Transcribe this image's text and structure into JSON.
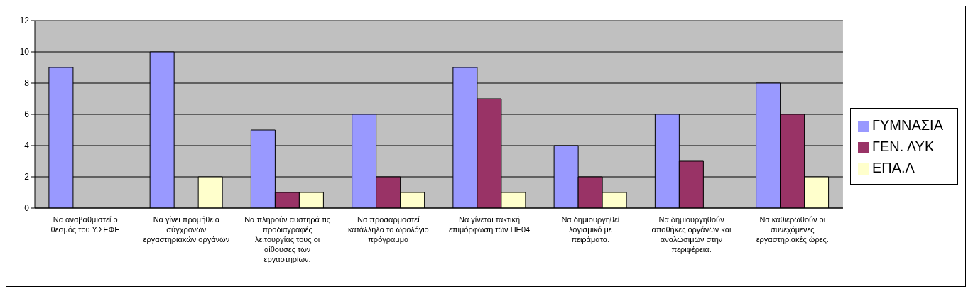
{
  "chart_data": {
    "type": "bar",
    "categories": [
      "Να αναβαθμιστεί ο θεσμός του Υ.ΣΕΦΕ",
      "Να γίνει προμήθεια σύγχρονων εργαστηριακών οργάνων",
      "Να πληρούν αυστηρά τις προδιαγραφές λειτουργίας τους οι αίθουσες των εργαστηρίων.",
      "Να προσαρμοστεί κατάλληλα το ωρολόγιο πρόγραμμα",
      "Να γίνεται τακτική επιμόρφωση των ΠΕ04",
      "Να δημιουργηθεί λογισμικό με πειράματα.",
      "Να δημιουργηθούν αποθήκες οργάνων και αναλώσιμων στην περιφέρεια.",
      "Να καθιερωθούν οι συνεχόμενες εργαστηριακές ώρες."
    ],
    "series": [
      {
        "name": "ΓΥΜΝΑΣΙΑ",
        "color": "#9999ff",
        "values": [
          9,
          10,
          5,
          6,
          9,
          4,
          6,
          8
        ]
      },
      {
        "name": "ΓΕΝ. ΛΥΚ",
        "color": "#993366",
        "values": [
          0,
          0,
          1,
          2,
          7,
          2,
          3,
          6
        ]
      },
      {
        "name": "ΕΠΑ.Λ",
        "color": "#ffffcc",
        "values": [
          0,
          2,
          1,
          1,
          1,
          1,
          0,
          2
        ]
      }
    ],
    "ylim": [
      0,
      12
    ],
    "yticks": [
      0,
      2,
      4,
      6,
      8,
      10,
      12
    ],
    "grid": "y",
    "legend": "right"
  }
}
